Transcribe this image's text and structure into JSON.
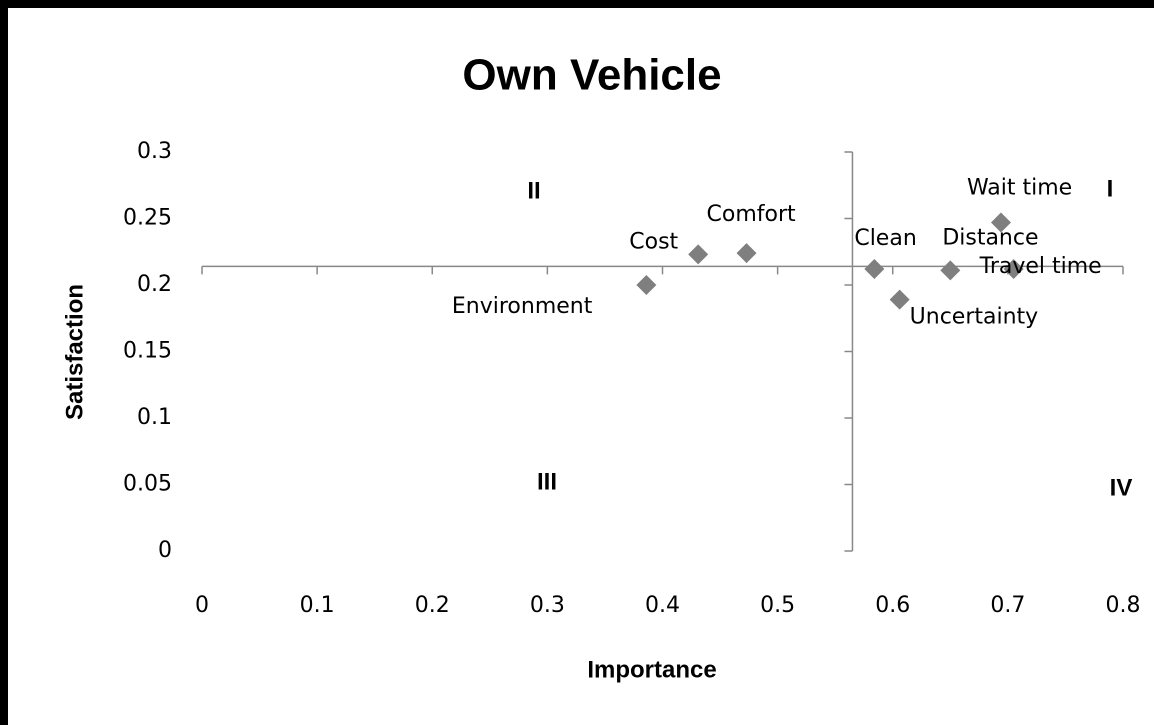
{
  "chart_data": {
    "type": "scatter",
    "title": "Own Vehicle",
    "x_label": "Importance",
    "y_label": "Satisfaction",
    "labels": [
      "Environment",
      "Cost",
      "Comfort",
      "Clean",
      "Uncertainty",
      "Distance",
      "Wait time",
      "Travel time"
    ],
    "x": [
      0.386,
      0.431,
      0.473,
      0.584,
      0.606,
      0.65,
      0.694,
      0.705
    ],
    "values": [
      0.2,
      0.223,
      0.224,
      0.212,
      0.189,
      0.211,
      0.247,
      0.212
    ],
    "color": "#7f7f7f",
    "xlim": [
      0,
      0.8
    ],
    "ylim": [
      0,
      0.3
    ],
    "xticks": [
      0,
      0.1,
      0.2,
      0.3,
      0.4,
      0.5,
      0.6,
      0.7,
      0.8
    ],
    "yticks": [
      0,
      0.05,
      0.1,
      0.15,
      0.2,
      0.25,
      0.3
    ],
    "x_cross": 0.565,
    "y_cross": 0.214,
    "quadrants": [
      "I",
      "II",
      "III",
      "IV"
    ]
  }
}
